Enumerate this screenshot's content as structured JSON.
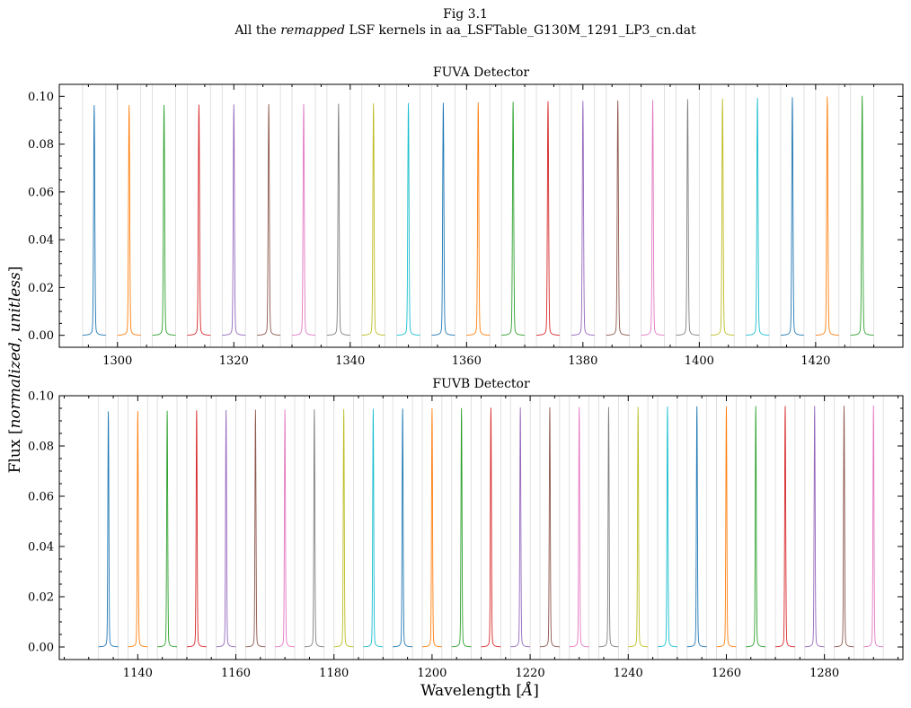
{
  "figure": {
    "title_line1": "Fig 3.1",
    "title_line2_pre": "All the ",
    "title_line2_em": "remapped",
    "title_line2_post": " LSF kernels in aa_LSFTable_G130M_1291_LP3_cn.dat",
    "ylabel_pre": "Flux [",
    "ylabel_em": "normalized, unitless",
    "ylabel_post": "]",
    "xlabel_pre": "Wavelength [",
    "xlabel_em": "Å",
    "xlabel_post": "]"
  },
  "colors": [
    "#1f77b4",
    "#ff7f0e",
    "#2ca02c",
    "#d62728",
    "#9467bd",
    "#8c564b",
    "#e377c2",
    "#7f7f7f",
    "#bcbd22",
    "#17becf"
  ],
  "chart_data": [
    {
      "type": "line",
      "title": "FUVA Detector",
      "xlabel": "",
      "ylabel": "",
      "xlim": [
        1290,
        1435
      ],
      "ylim": [
        -0.005,
        0.105
      ],
      "xticks": [
        1300,
        1320,
        1340,
        1360,
        1380,
        1400,
        1420
      ],
      "xtick_labels": [
        "1300",
        "1320",
        "1340",
        "1360",
        "1380",
        "1400",
        "1420"
      ],
      "yticks": [
        0.0,
        0.02,
        0.04,
        0.06,
        0.08,
        0.1
      ],
      "ytick_labels": [
        "0.00",
        "0.02",
        "0.04",
        "0.06",
        "0.08",
        "0.10"
      ],
      "grid": false,
      "kernel_half_width": 2.0,
      "kernel_centers": [
        1296,
        1302,
        1308,
        1314,
        1320,
        1326,
        1332,
        1338,
        1344,
        1350,
        1356,
        1362,
        1368,
        1374,
        1380,
        1386,
        1392,
        1398,
        1404,
        1410,
        1416,
        1422,
        1428
      ],
      "kernel_peaks": [
        0.0963,
        0.0963,
        0.0964,
        0.0965,
        0.0966,
        0.0967,
        0.0968,
        0.0969,
        0.097,
        0.0972,
        0.0973,
        0.0975,
        0.0977,
        0.0979,
        0.0981,
        0.0983,
        0.0985,
        0.0988,
        0.099,
        0.0993,
        0.0996,
        0.0999,
        0.1002
      ]
    },
    {
      "type": "line",
      "title": "FUVB Detector",
      "xlabel": "Wavelength [Å]",
      "ylabel": "",
      "xlim": [
        1124,
        1296
      ],
      "ylim": [
        -0.005,
        0.1
      ],
      "xticks": [
        1140,
        1160,
        1180,
        1200,
        1220,
        1240,
        1260,
        1280
      ],
      "xtick_labels": [
        "1140",
        "1160",
        "1180",
        "1200",
        "1220",
        "1240",
        "1260",
        "1280"
      ],
      "yticks": [
        0.0,
        0.02,
        0.04,
        0.06,
        0.08,
        0.1
      ],
      "ytick_labels": [
        "0.00",
        "0.02",
        "0.04",
        "0.06",
        "0.08",
        "0.10"
      ],
      "grid": false,
      "kernel_half_width": 2.0,
      "kernel_centers": [
        1134,
        1140,
        1146,
        1152,
        1158,
        1164,
        1170,
        1176,
        1182,
        1188,
        1194,
        1200,
        1206,
        1212,
        1218,
        1224,
        1230,
        1236,
        1242,
        1248,
        1254,
        1260,
        1266,
        1272,
        1278,
        1284,
        1290
      ],
      "kernel_peaks": [
        0.0938,
        0.0939,
        0.094,
        0.0942,
        0.0943,
        0.0944,
        0.0945,
        0.0946,
        0.0947,
        0.0948,
        0.0949,
        0.095,
        0.0951,
        0.0952,
        0.0953,
        0.0954,
        0.0955,
        0.0955,
        0.0956,
        0.0957,
        0.0958,
        0.0958,
        0.0959,
        0.0959,
        0.096,
        0.096,
        0.0961
      ]
    }
  ]
}
